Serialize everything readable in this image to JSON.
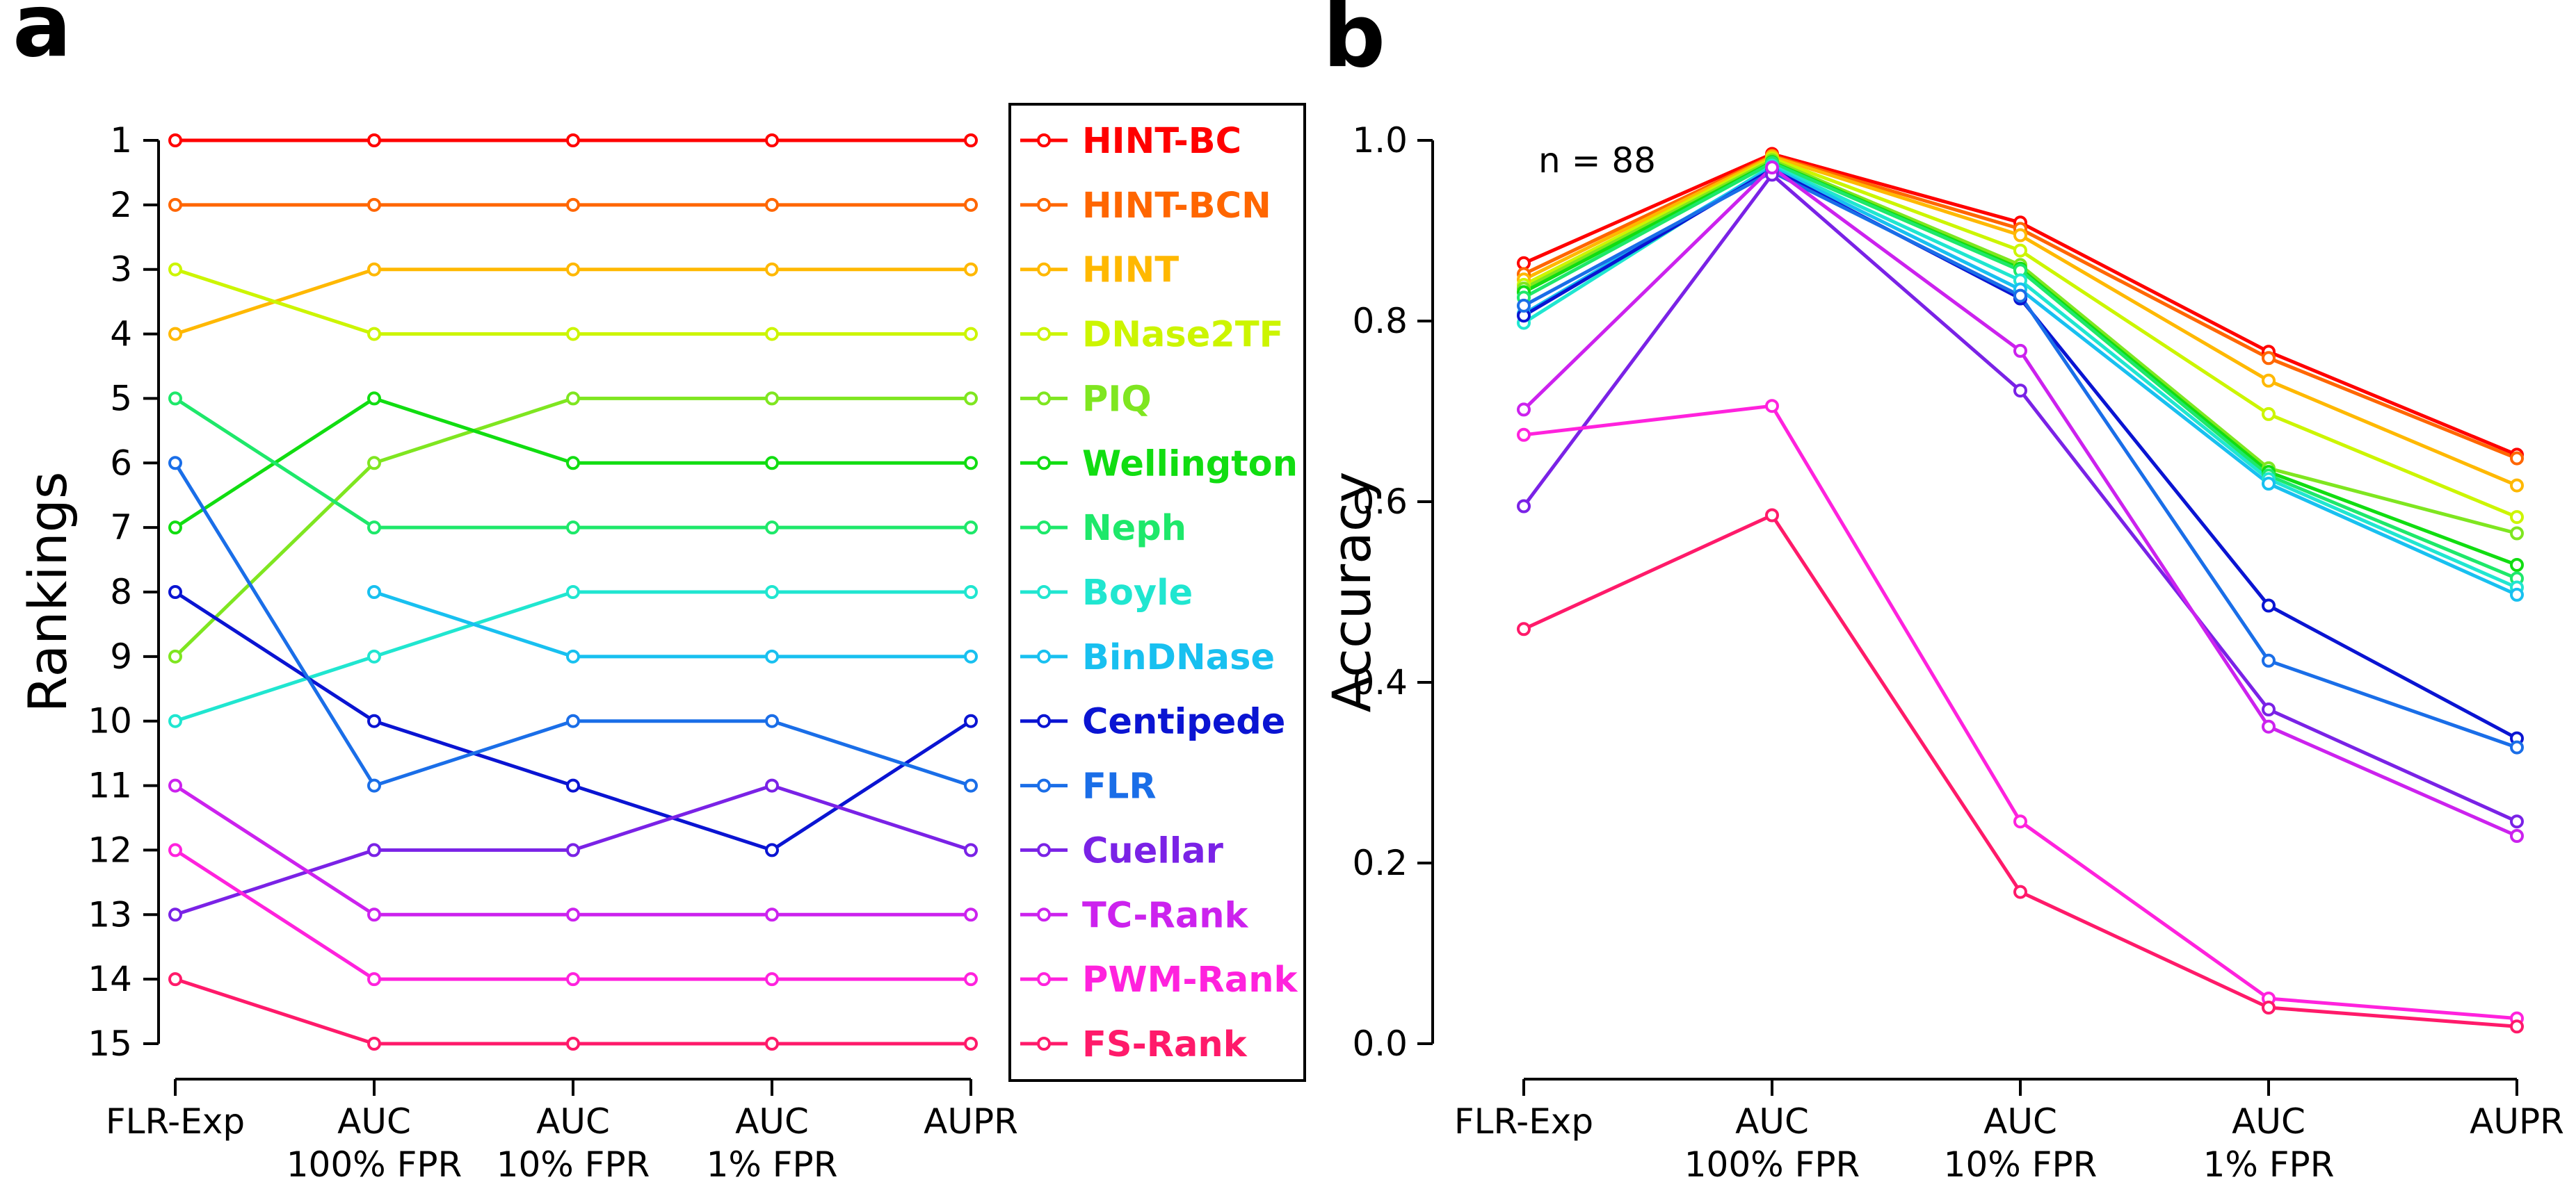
{
  "panels": {
    "a": {
      "letter": "a"
    },
    "b": {
      "letter": "b"
    }
  },
  "chart_data": [
    {
      "type": "line",
      "panel": "a",
      "title": "",
      "xlabel": "",
      "ylabel": "Rankings",
      "categories": [
        "FLR-Exp",
        "AUC\n100% FPR",
        "AUC\n10% FPR",
        "AUC\n1% FPR",
        "AUPR"
      ],
      "ylim": [
        1,
        15
      ],
      "y_inverted": true,
      "yticks": [
        1,
        2,
        3,
        4,
        5,
        6,
        7,
        8,
        9,
        10,
        11,
        12,
        13,
        14,
        15
      ],
      "grid": false,
      "legend_position": "right",
      "series": [
        {
          "name": "HINT-BC",
          "color": "#ff0000",
          "values": [
            1,
            1,
            1,
            1,
            1
          ]
        },
        {
          "name": "HINT-BCN",
          "color": "#ff6600",
          "values": [
            2,
            2,
            2,
            2,
            2
          ]
        },
        {
          "name": "HINT",
          "color": "#ffb800",
          "values": [
            4,
            3,
            3,
            3,
            3
          ]
        },
        {
          "name": "DNase2TF",
          "color": "#ccf500",
          "values": [
            3,
            4,
            4,
            4,
            4
          ]
        },
        {
          "name": "PIQ",
          "color": "#7fe620",
          "values": [
            9,
            6,
            5,
            5,
            5
          ]
        },
        {
          "name": "Wellington",
          "color": "#11dd11",
          "values": [
            7,
            5,
            6,
            6,
            6
          ]
        },
        {
          "name": "Neph",
          "color": "#1ee86a",
          "values": [
            5,
            7,
            7,
            7,
            7
          ]
        },
        {
          "name": "Boyle",
          "color": "#20e6d0",
          "values": [
            10,
            9,
            8,
            8,
            8
          ]
        },
        {
          "name": "BinDNase",
          "color": "#18c0f0",
          "values": [
            null,
            8,
            9,
            9,
            9
          ]
        },
        {
          "name": "Centipede",
          "color": "#0a14d2",
          "values": [
            8,
            10,
            11,
            12,
            10
          ]
        },
        {
          "name": "FLR",
          "color": "#1a6ee8",
          "values": [
            6,
            11,
            10,
            10,
            11
          ]
        },
        {
          "name": "Cuellar",
          "color": "#7a22e6",
          "values": [
            13,
            12,
            12,
            11,
            12
          ]
        },
        {
          "name": "TC-Rank",
          "color": "#cc22ee",
          "values": [
            11,
            13,
            13,
            13,
            13
          ]
        },
        {
          "name": "PWM-Rank",
          "color": "#ff22dd",
          "values": [
            12,
            14,
            14,
            14,
            14
          ]
        },
        {
          "name": "FS-Rank",
          "color": "#ff1a6a",
          "values": [
            14,
            15,
            15,
            15,
            15
          ]
        }
      ]
    },
    {
      "type": "line",
      "panel": "b",
      "title": "",
      "xlabel": "",
      "ylabel": "Accuracy",
      "annotation": "n = 88",
      "categories": [
        "FLR-Exp",
        "AUC\n100% FPR",
        "AUC\n10% FPR",
        "AUC\n1% FPR",
        "AUPR"
      ],
      "ylim": [
        0.0,
        1.0
      ],
      "yticks": [
        "0.0",
        "0.2",
        "0.4",
        "0.6",
        "0.8",
        "1.0"
      ],
      "grid": false,
      "series": [
        {
          "name": "HINT-BC",
          "color": "#ff0000",
          "values": [
            0.864,
            0.985,
            0.909,
            0.766,
            0.652
          ]
        },
        {
          "name": "HINT-BCN",
          "color": "#ff6600",
          "values": [
            0.852,
            0.983,
            0.902,
            0.759,
            0.648
          ]
        },
        {
          "name": "HINT",
          "color": "#ffb800",
          "values": [
            0.846,
            0.982,
            0.895,
            0.734,
            0.618
          ]
        },
        {
          "name": "DNase2TF",
          "color": "#ccf500",
          "values": [
            0.84,
            0.98,
            0.878,
            0.697,
            0.583
          ]
        },
        {
          "name": "PIQ",
          "color": "#7fe620",
          "values": [
            0.836,
            0.978,
            0.862,
            0.637,
            0.565
          ]
        },
        {
          "name": "Wellington",
          "color": "#11dd11",
          "values": [
            0.832,
            0.976,
            0.858,
            0.633,
            0.53
          ]
        },
        {
          "name": "Neph",
          "color": "#1ee86a",
          "values": [
            0.826,
            0.975,
            0.856,
            0.629,
            0.515
          ]
        },
        {
          "name": "Boyle",
          "color": "#20e6d0",
          "values": [
            0.798,
            0.972,
            0.845,
            0.625,
            0.505
          ]
        },
        {
          "name": "BinDNase",
          "color": "#18c0f0",
          "values": [
            0.808,
            0.97,
            0.835,
            0.62,
            0.497
          ]
        },
        {
          "name": "Centipede",
          "color": "#0a14d2",
          "values": [
            0.806,
            0.968,
            0.825,
            0.485,
            0.338
          ]
        },
        {
          "name": "FLR",
          "color": "#1a6ee8",
          "values": [
            0.817,
            0.965,
            0.828,
            0.424,
            0.328
          ]
        },
        {
          "name": "Cuellar",
          "color": "#7a22e6",
          "values": [
            0.595,
            0.962,
            0.723,
            0.37,
            0.246
          ]
        },
        {
          "name": "TC-Rank",
          "color": "#cc22ee",
          "values": [
            0.702,
            0.97,
            0.767,
            0.351,
            0.23
          ]
        },
        {
          "name": "PWM-Rank",
          "color": "#ff22dd",
          "values": [
            0.674,
            0.706,
            0.246,
            0.05,
            0.028
          ]
        },
        {
          "name": "FS-Rank",
          "color": "#ff1a6a",
          "values": [
            0.459,
            0.585,
            0.168,
            0.04,
            0.019
          ]
        }
      ]
    }
  ]
}
